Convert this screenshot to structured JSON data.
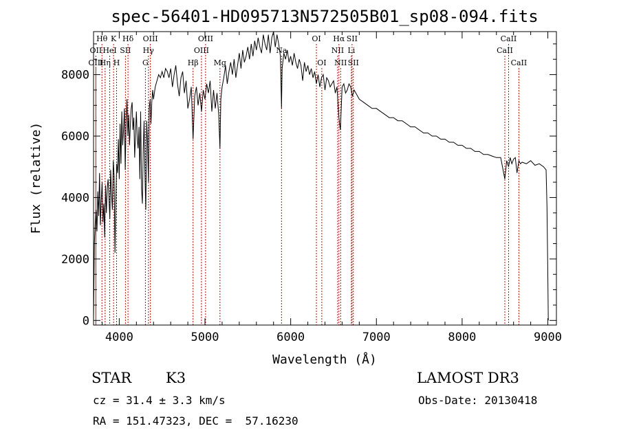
{
  "chart_data": {
    "type": "line",
    "title": "spec-56401-HD095713N572505B01_sp08-094.fits",
    "xlabel": "Wavelength (Å)",
    "ylabel": "Flux (relative)",
    "xlim": [
      3700,
      9100
    ],
    "ylim": [
      -150,
      9400
    ],
    "xticks": [
      4000,
      5000,
      6000,
      7000,
      8000,
      9000
    ],
    "yticks": [
      0,
      2000,
      4000,
      6000,
      8000
    ],
    "x_minor_step": 200,
    "y_minor_step": 500,
    "series": [
      {
        "name": "spectrum",
        "x": [
          3700,
          3710,
          3720,
          3730,
          3740,
          3750,
          3760,
          3770,
          3780,
          3790,
          3800,
          3810,
          3820,
          3830,
          3840,
          3850,
          3860,
          3870,
          3880,
          3890,
          3900,
          3910,
          3920,
          3930,
          3940,
          3950,
          3960,
          3970,
          3980,
          3990,
          4000,
          4010,
          4020,
          4030,
          4040,
          4050,
          4060,
          4070,
          4080,
          4090,
          4100,
          4110,
          4120,
          4130,
          4140,
          4150,
          4160,
          4170,
          4180,
          4190,
          4200,
          4210,
          4220,
          4230,
          4240,
          4250,
          4260,
          4270,
          4280,
          4290,
          4300,
          4310,
          4320,
          4330,
          4340,
          4350,
          4360,
          4370,
          4380,
          4390,
          4400,
          4420,
          4440,
          4460,
          4480,
          4500,
          4520,
          4540,
          4560,
          4580,
          4600,
          4620,
          4640,
          4660,
          4680,
          4700,
          4720,
          4740,
          4760,
          4780,
          4800,
          4820,
          4840,
          4861,
          4880,
          4900,
          4920,
          4940,
          4960,
          4980,
          5000,
          5020,
          5040,
          5060,
          5080,
          5100,
          5120,
          5140,
          5160,
          5175,
          5185,
          5200,
          5220,
          5240,
          5260,
          5280,
          5300,
          5320,
          5340,
          5360,
          5380,
          5400,
          5420,
          5440,
          5460,
          5480,
          5500,
          5520,
          5540,
          5560,
          5580,
          5600,
          5620,
          5640,
          5660,
          5680,
          5700,
          5720,
          5740,
          5760,
          5780,
          5800,
          5820,
          5840,
          5860,
          5880,
          5893,
          5900,
          5920,
          5940,
          5960,
          5980,
          6000,
          6020,
          6040,
          6060,
          6080,
          6100,
          6120,
          6140,
          6160,
          6180,
          6200,
          6220,
          6240,
          6260,
          6280,
          6300,
          6320,
          6340,
          6360,
          6380,
          6400,
          6420,
          6440,
          6460,
          6480,
          6500,
          6520,
          6540,
          6563,
          6580,
          6600,
          6620,
          6640,
          6660,
          6680,
          6700,
          6720,
          6740,
          6760,
          6780,
          6800,
          6850,
          6900,
          6950,
          7000,
          7050,
          7100,
          7150,
          7200,
          7250,
          7300,
          7350,
          7400,
          7450,
          7500,
          7550,
          7600,
          7650,
          7700,
          7750,
          7800,
          7850,
          7900,
          7950,
          8000,
          8050,
          8100,
          8150,
          8200,
          8250,
          8300,
          8350,
          8400,
          8450,
          8498,
          8520,
          8542,
          8560,
          8580,
          8600,
          8620,
          8640,
          8662,
          8680,
          8700,
          8750,
          8800,
          8850,
          8900,
          8950,
          8980,
          8990,
          9000,
          9005
        ],
        "y": [
          0,
          2500,
          3200,
          3600,
          2900,
          4200,
          3400,
          4800,
          3100,
          3900,
          4500,
          3200,
          3800,
          2700,
          4400,
          3500,
          4300,
          4600,
          4000,
          3300,
          4900,
          4100,
          3600,
          5200,
          4700,
          2200,
          3900,
          5100,
          4800,
          5900,
          4600,
          6400,
          5100,
          6800,
          5700,
          6200,
          6900,
          4900,
          6500,
          7200,
          6000,
          6700,
          5700,
          6400,
          6900,
          7100,
          6200,
          6600,
          5300,
          6100,
          6800,
          5900,
          5600,
          6300,
          4600,
          6800,
          4300,
          3800,
          5600,
          6500,
          4700,
          3600,
          6500,
          5800,
          4500,
          6900,
          7200,
          6400,
          7100,
          7500,
          7200,
          7600,
          7800,
          8000,
          7900,
          8100,
          7900,
          8200,
          8100,
          7900,
          8200,
          7600,
          8000,
          8300,
          7700,
          7300,
          7900,
          8100,
          7400,
          7800,
          6900,
          7200,
          7600,
          5900,
          7300,
          7600,
          7000,
          7400,
          6800,
          7500,
          7200,
          7700,
          7400,
          7800,
          6800,
          7500,
          6900,
          7400,
          6700,
          5600,
          7200,
          7600,
          7900,
          8300,
          7700,
          8100,
          8400,
          8000,
          8500,
          7900,
          8300,
          8700,
          8200,
          8800,
          8400,
          8600,
          8900,
          8500,
          9000,
          8600,
          9100,
          8800,
          9200,
          8900,
          8700,
          9300,
          9000,
          8800,
          9300,
          8700,
          9200,
          9400,
          8900,
          9300,
          9000,
          8600,
          6900,
          8200,
          8700,
          8500,
          8800,
          8400,
          8600,
          8300,
          8700,
          8400,
          8200,
          8500,
          8300,
          7800,
          8400,
          8100,
          8300,
          8000,
          8200,
          7900,
          8100,
          7700,
          8000,
          7600,
          7900,
          8000,
          7500,
          7900,
          7800,
          7600,
          7700,
          7800,
          7400,
          7600,
          6600,
          6200,
          7600,
          7700,
          7400,
          7500,
          7700,
          7600,
          7300,
          7500,
          7400,
          7300,
          7200,
          7100,
          7000,
          6900,
          6900,
          6800,
          6700,
          6600,
          6600,
          6500,
          6500,
          6400,
          6300,
          6300,
          6200,
          6100,
          6100,
          6000,
          6000,
          5900,
          5900,
          5800,
          5800,
          5700,
          5700,
          5600,
          5600,
          5500,
          5500,
          5400,
          5400,
          5350,
          5300,
          5300,
          4600,
          5200,
          5000,
          5300,
          5100,
          5250,
          5300,
          4800,
          5200,
          5100,
          5150,
          5100,
          5200,
          5050,
          5100,
          5000,
          4900,
          3700,
          1500,
          0
        ]
      }
    ],
    "spectral_lines": [
      {
        "label": "Hθ",
        "wavelength": 3798,
        "row": 0
      },
      {
        "label": "OII",
        "wavelength": 3727,
        "row": 1
      },
      {
        "label": "OIII",
        "wavelength": 3727,
        "row": 2
      },
      {
        "label": "K",
        "wavelength": 3934,
        "row": 0
      },
      {
        "label": "HeI",
        "wavelength": 3889,
        "row": 1
      },
      {
        "label": "Hη",
        "wavelength": 3835,
        "row": 2
      },
      {
        "label": "Hδ",
        "wavelength": 4102,
        "row": 0
      },
      {
        "label": "SII",
        "wavelength": 4072,
        "row": 1
      },
      {
        "label": "H",
        "wavelength": 3969,
        "row": 2
      },
      {
        "label": "OIII",
        "wavelength": 4363,
        "row": 0
      },
      {
        "label": "Hγ",
        "wavelength": 4340,
        "row": 1
      },
      {
        "label": "G",
        "wavelength": 4305,
        "row": 2
      },
      {
        "label": "OIII",
        "wavelength": 5007,
        "row": 0
      },
      {
        "label": "OIII",
        "wavelength": 4959,
        "row": 1
      },
      {
        "label": "Hβ",
        "wavelength": 4861,
        "row": 2
      },
      {
        "label": "Mg",
        "wavelength": 5175,
        "row": 2
      },
      {
        "label": "Na",
        "wavelength": 5893,
        "row": 1
      },
      {
        "label": "OI",
        "wavelength": 6300,
        "row": 0
      },
      {
        "label": "OI",
        "wavelength": 6363,
        "row": 2
      },
      {
        "label": "Hα",
        "wavelength": 6563,
        "row": 0
      },
      {
        "label": "SII",
        "wavelength": 6716,
        "row": 0
      },
      {
        "label": "NII",
        "wavelength": 6548,
        "row": 1
      },
      {
        "label": "Li",
        "wavelength": 6708,
        "row": 1
      },
      {
        "label": "NII",
        "wavelength": 6583,
        "row": 2
      },
      {
        "label": "SII",
        "wavelength": 6731,
        "row": 2
      },
      {
        "label": "CaII",
        "wavelength": 8542,
        "row": 0
      },
      {
        "label": "CaII",
        "wavelength": 8498,
        "row": 1
      },
      {
        "label": "CaII",
        "wavelength": 8662,
        "row": 2
      }
    ],
    "line_color": "#000000",
    "marker_color": "#cc0000"
  },
  "info": {
    "class_label": "STAR",
    "subclass": "K3",
    "survey": "LAMOST DR3",
    "cz": "cz = 31.4 ± 3.3 km/s",
    "obs_date": "Obs-Date: 20130418",
    "coords": "RA = 151.47323, DEC =  57.16230"
  }
}
